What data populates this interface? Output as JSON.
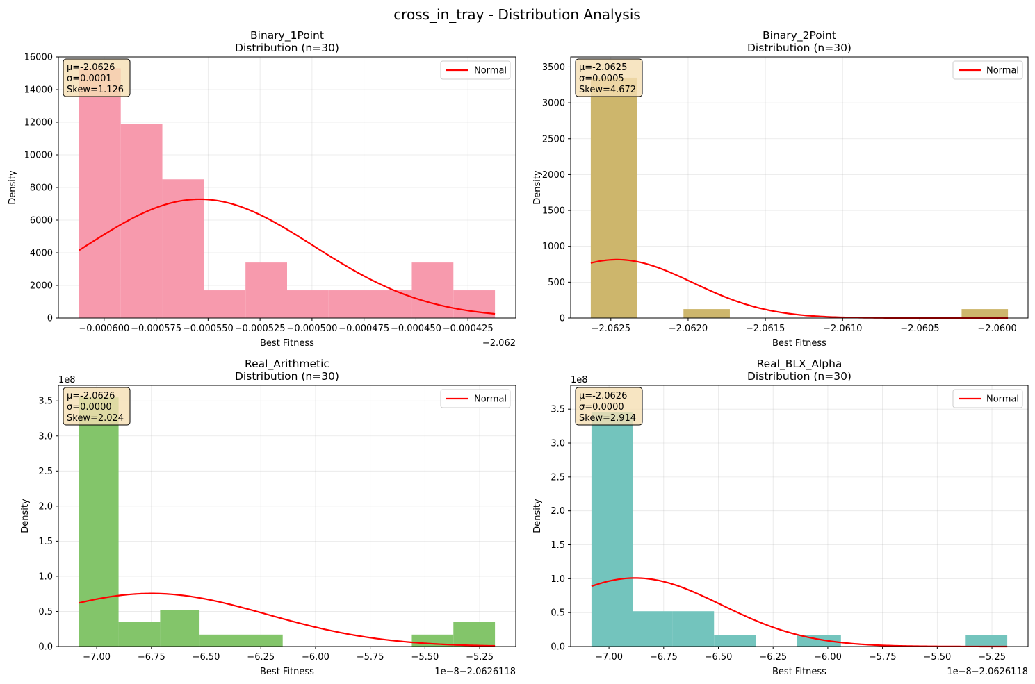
{
  "figure": {
    "title": "cross_in_tray - Distribution Analysis"
  },
  "chart_data": [
    {
      "type": "bar",
      "title": "Binary_1Point\nDistribution (n=30)",
      "xlabel": "Best Fitness",
      "ylabel": "Density",
      "offset_text": "−2.062",
      "y_exponent": "",
      "color": "#f79aad",
      "bins": [
        {
          "x0": -0.000612,
          "x1": -0.000592,
          "density": 15300
        },
        {
          "x0": -0.000592,
          "x1": -0.000572,
          "density": 11900
        },
        {
          "x0": -0.000572,
          "x1": -0.000552,
          "density": 8500
        },
        {
          "x0": -0.000552,
          "x1": -0.000532,
          "density": 1700
        },
        {
          "x0": -0.000532,
          "x1": -0.000512,
          "density": 3400
        },
        {
          "x0": -0.000512,
          "x1": -0.000492,
          "density": 1700
        },
        {
          "x0": -0.000492,
          "x1": -0.000472,
          "density": 1700
        },
        {
          "x0": -0.000472,
          "x1": -0.000452,
          "density": 1700
        },
        {
          "x0": -0.000452,
          "x1": -0.000432,
          "density": 3400
        },
        {
          "x0": -0.000432,
          "x1": -0.000412,
          "density": 1700
        }
      ],
      "normal": {
        "mu": -0.000554,
        "sigma": 5.48e-05
      },
      "xlim": [
        -0.000622,
        -0.000402
      ],
      "ylim": [
        0,
        16000
      ],
      "xticks": [
        {
          "v": -0.0006,
          "label": "−0.000600"
        },
        {
          "v": -0.000575,
          "label": "−0.000575"
        },
        {
          "v": -0.00055,
          "label": "−0.000550"
        },
        {
          "v": -0.000525,
          "label": "−0.000525"
        },
        {
          "v": -0.0005,
          "label": "−0.000500"
        },
        {
          "v": -0.000475,
          "label": "−0.000475"
        },
        {
          "v": -0.00045,
          "label": "−0.000450"
        },
        {
          "v": -0.000425,
          "label": "−0.000425"
        }
      ],
      "yticks": [
        {
          "v": 0,
          "label": "0"
        },
        {
          "v": 2000,
          "label": "2000"
        },
        {
          "v": 4000,
          "label": "4000"
        },
        {
          "v": 6000,
          "label": "6000"
        },
        {
          "v": 8000,
          "label": "8000"
        },
        {
          "v": 10000,
          "label": "10000"
        },
        {
          "v": 12000,
          "label": "12000"
        },
        {
          "v": 14000,
          "label": "14000"
        },
        {
          "v": 16000,
          "label": "16000"
        }
      ],
      "stats": [
        "μ=-2.0626",
        "σ=0.0001",
        "Skew=1.126"
      ],
      "legend": "Normal"
    },
    {
      "type": "bar",
      "title": "Binary_2Point\nDistribution (n=30)",
      "xlabel": "Best Fitness",
      "ylabel": "Density",
      "offset_text": "",
      "y_exponent": "",
      "color": "#cdb66c",
      "bins": [
        {
          "x0": -2.06263,
          "x1": -2.06233,
          "density": 3350
        },
        {
          "x0": -2.06233,
          "x1": -2.06203,
          "density": 0
        },
        {
          "x0": -2.06203,
          "x1": -2.06173,
          "density": 125
        },
        {
          "x0": -2.06173,
          "x1": -2.06143,
          "density": 0
        },
        {
          "x0": -2.06143,
          "x1": -2.06113,
          "density": 0
        },
        {
          "x0": -2.06113,
          "x1": -2.06083,
          "density": 0
        },
        {
          "x0": -2.06083,
          "x1": -2.06053,
          "density": 0
        },
        {
          "x0": -2.06053,
          "x1": -2.06023,
          "density": 0
        },
        {
          "x0": -2.06023,
          "x1": -2.05993,
          "density": 125
        }
      ],
      "normal": {
        "mu": -2.06246,
        "sigma": 0.00049
      },
      "xlim": [
        -2.06276,
        -2.0598
      ],
      "ylim": [
        0,
        3640
      ],
      "xticks": [
        {
          "v": -2.0625,
          "label": "−2.0625"
        },
        {
          "v": -2.062,
          "label": "−2.0620"
        },
        {
          "v": -2.0615,
          "label": "−2.0615"
        },
        {
          "v": -2.061,
          "label": "−2.0610"
        },
        {
          "v": -2.0605,
          "label": "−2.0605"
        },
        {
          "v": -2.06,
          "label": "−2.0600"
        }
      ],
      "yticks": [
        {
          "v": 0,
          "label": "0"
        },
        {
          "v": 500,
          "label": "500"
        },
        {
          "v": 1000,
          "label": "1000"
        },
        {
          "v": 1500,
          "label": "1500"
        },
        {
          "v": 2000,
          "label": "2000"
        },
        {
          "v": 2500,
          "label": "2500"
        },
        {
          "v": 3000,
          "label": "3000"
        },
        {
          "v": 3500,
          "label": "3500"
        }
      ],
      "stats": [
        "μ=-2.0625",
        "σ=0.0005",
        "Skew=4.672"
      ],
      "legend": "Normal"
    },
    {
      "type": "bar",
      "title": "Real_Arithmetic\nDistribution (n=30)",
      "xlabel": "Best Fitness",
      "ylabel": "Density",
      "offset_text": "1e−8−2.0626118",
      "y_exponent": "1e8",
      "color": "#83c56a",
      "bins": [
        {
          "x0": -7.08,
          "x1": -6.9,
          "density": 3.55
        },
        {
          "x0": -6.9,
          "x1": -6.71,
          "density": 0.35
        },
        {
          "x0": -6.71,
          "x1": -6.53,
          "density": 0.52
        },
        {
          "x0": -6.53,
          "x1": -6.34,
          "density": 0.17
        },
        {
          "x0": -6.34,
          "x1": -6.15,
          "density": 0.17
        },
        {
          "x0": -6.15,
          "x1": -5.97,
          "density": 0
        },
        {
          "x0": -5.97,
          "x1": -5.78,
          "density": 0
        },
        {
          "x0": -5.78,
          "x1": -5.56,
          "density": 0
        },
        {
          "x0": -5.56,
          "x1": -5.37,
          "density": 0.17
        },
        {
          "x0": -5.37,
          "x1": -5.18,
          "density": 0.35
        }
      ],
      "normal": {
        "mu": -6.75,
        "sigma": 0.528
      },
      "xlim": [
        -7.175,
        -5.085
      ],
      "ylim": [
        0,
        3.72
      ],
      "xticks": [
        {
          "v": -7.0,
          "label": "−7.00"
        },
        {
          "v": -6.75,
          "label": "−6.75"
        },
        {
          "v": -6.5,
          "label": "−6.50"
        },
        {
          "v": -6.25,
          "label": "−6.25"
        },
        {
          "v": -6.0,
          "label": "−6.00"
        },
        {
          "v": -5.75,
          "label": "−5.75"
        },
        {
          "v": -5.5,
          "label": "−5.50"
        },
        {
          "v": -5.25,
          "label": "−5.25"
        }
      ],
      "yticks": [
        {
          "v": 0,
          "label": "0.0"
        },
        {
          "v": 0.5,
          "label": "0.5"
        },
        {
          "v": 1.0,
          "label": "1.0"
        },
        {
          "v": 1.5,
          "label": "1.5"
        },
        {
          "v": 2.0,
          "label": "2.0"
        },
        {
          "v": 2.5,
          "label": "2.5"
        },
        {
          "v": 3.0,
          "label": "3.0"
        },
        {
          "v": 3.5,
          "label": "3.5"
        }
      ],
      "stats": [
        "μ=-2.0626",
        "σ=0.0000",
        "Skew=2.024"
      ],
      "legend": "Normal"
    },
    {
      "type": "bar",
      "title": "Real_BLX_Alpha\nDistribution (n=30)",
      "xlabel": "Best Fitness",
      "ylabel": "Density",
      "offset_text": "1e−8−2.0626118",
      "y_exponent": "1e8",
      "color": "#73c4bd",
      "bins": [
        {
          "x0": -7.08,
          "x1": -6.89,
          "density": 3.45
        },
        {
          "x0": -6.89,
          "x1": -6.71,
          "density": 0.52
        },
        {
          "x0": -6.71,
          "x1": -6.52,
          "density": 0.52
        },
        {
          "x0": -6.52,
          "x1": -6.33,
          "density": 0.17
        },
        {
          "x0": -6.33,
          "x1": -6.14,
          "density": 0
        },
        {
          "x0": -6.14,
          "x1": -5.94,
          "density": 0.17
        },
        {
          "x0": -5.94,
          "x1": -5.75,
          "density": 0
        },
        {
          "x0": -5.75,
          "x1": -5.56,
          "density": 0
        },
        {
          "x0": -5.56,
          "x1": -5.37,
          "density": 0
        },
        {
          "x0": -5.37,
          "x1": -5.18,
          "density": 0.17
        }
      ],
      "normal": {
        "mu": -6.88,
        "sigma": 0.395
      },
      "xlim": [
        -7.175,
        -5.085
      ],
      "ylim": [
        0,
        3.85
      ],
      "xticks": [
        {
          "v": -7.0,
          "label": "−7.00"
        },
        {
          "v": -6.75,
          "label": "−6.75"
        },
        {
          "v": -6.5,
          "label": "−6.50"
        },
        {
          "v": -6.25,
          "label": "−6.25"
        },
        {
          "v": -6.0,
          "label": "−6.00"
        },
        {
          "v": -5.75,
          "label": "−5.75"
        },
        {
          "v": -5.5,
          "label": "−5.50"
        },
        {
          "v": -5.25,
          "label": "−5.25"
        }
      ],
      "yticks": [
        {
          "v": 0,
          "label": "0.0"
        },
        {
          "v": 0.5,
          "label": "0.5"
        },
        {
          "v": 1.0,
          "label": "1.0"
        },
        {
          "v": 1.5,
          "label": "1.5"
        },
        {
          "v": 2.0,
          "label": "2.0"
        },
        {
          "v": 2.5,
          "label": "2.5"
        },
        {
          "v": 3.0,
          "label": "3.0"
        },
        {
          "v": 3.5,
          "label": "3.5"
        }
      ],
      "stats": [
        "μ=-2.0626",
        "σ=0.0000",
        "Skew=2.914"
      ],
      "legend": "Normal"
    }
  ]
}
